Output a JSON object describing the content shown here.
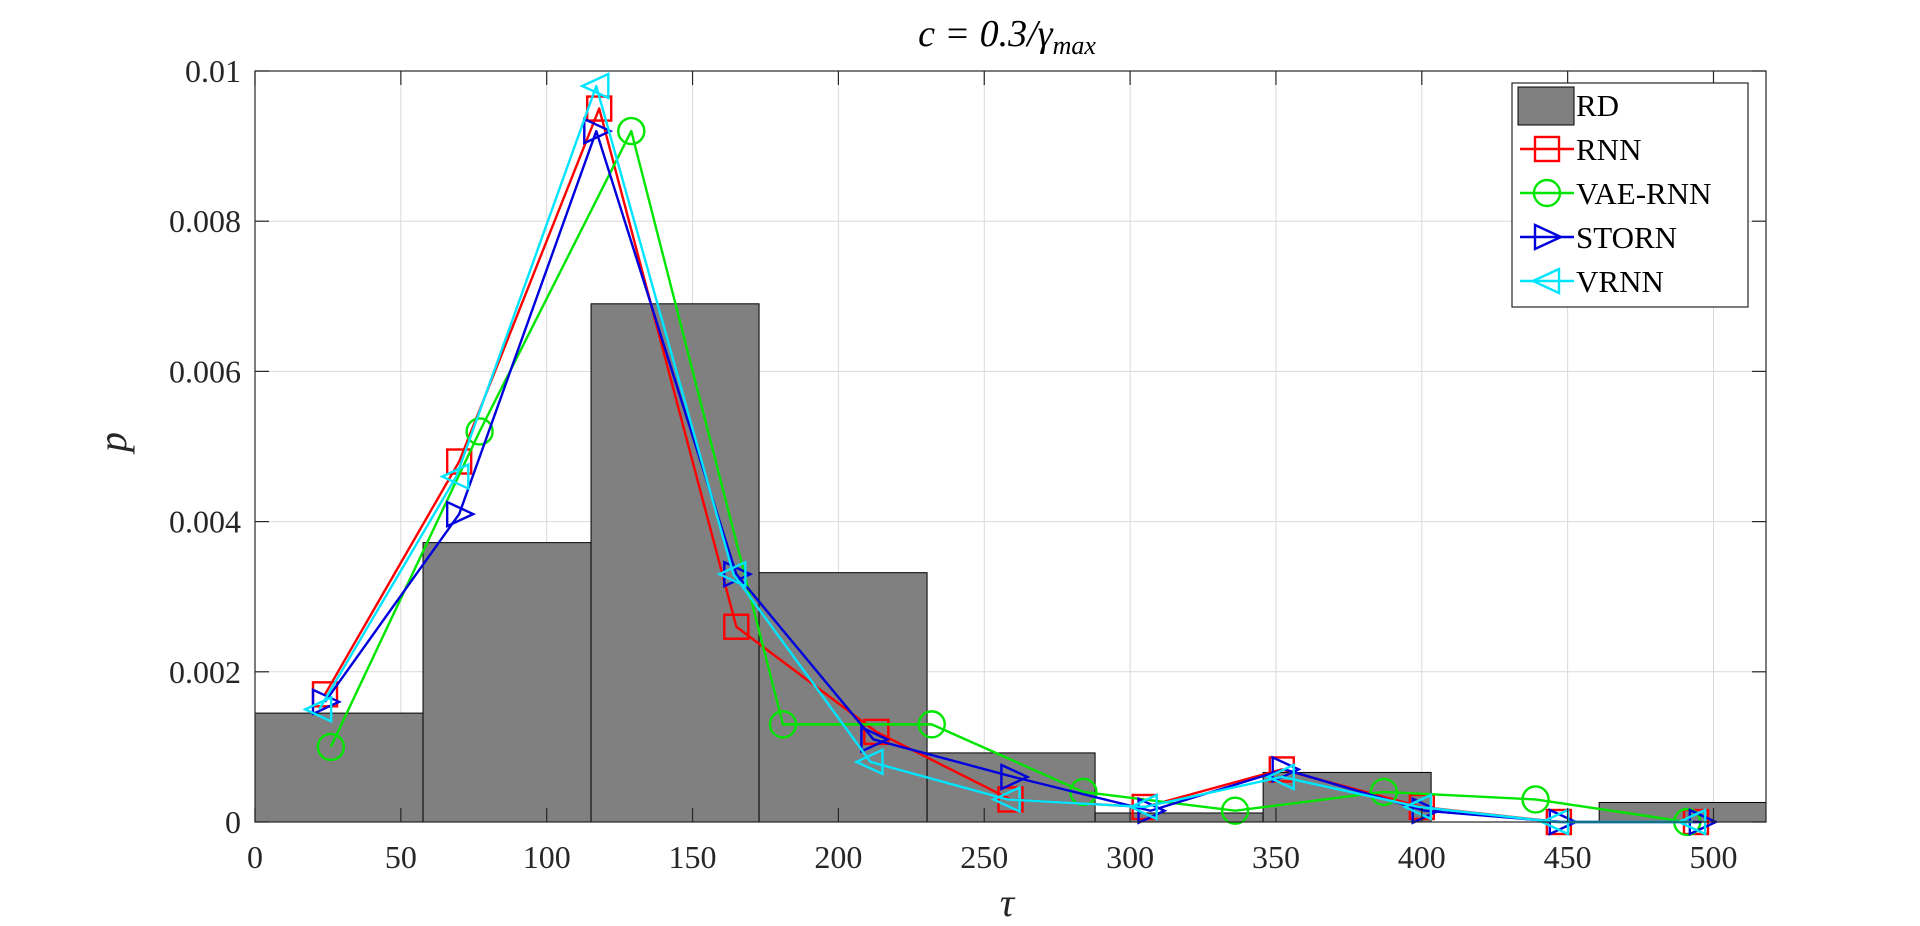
{
  "chart_data": {
    "type": "bar",
    "title": "c = 0.3/γ",
    "title_subscript": "max",
    "xlabel": "τ",
    "ylabel": "p",
    "xlim": [
      0,
      518
    ],
    "ylim": [
      0,
      0.01
    ],
    "xticks": [
      "0",
      "50",
      "100",
      "150",
      "200",
      "250",
      "300",
      "350",
      "400",
      "450",
      "500"
    ],
    "xtick_values": [
      0,
      50,
      100,
      150,
      200,
      250,
      300,
      350,
      400,
      450,
      500
    ],
    "yticks": [
      "0",
      "0.002",
      "0.004",
      "0.006",
      "0.008",
      "0.01"
    ],
    "ytick_values": [
      0,
      0.002,
      0.004,
      0.006,
      0.008,
      0.01
    ],
    "grid": true,
    "legend_position": "top-right",
    "histogram": {
      "name": "RD",
      "color": "#808080",
      "bin_edges": [
        0,
        57.6,
        115.2,
        172.8,
        230.4,
        288,
        345.6,
        403.2,
        460.8,
        518.4
      ],
      "values": [
        0.00145,
        0.00372,
        0.0069,
        0.00332,
        0.00092,
        0.00012,
        0.00066,
        0.0,
        0.00026
      ]
    },
    "series": [
      {
        "name": "RNN",
        "color": "#ff0000",
        "marker": "square",
        "x": [
          24,
          70,
          118,
          165,
          213,
          259,
          305,
          352,
          400,
          447,
          494
        ],
        "y": [
          0.0017,
          0.0048,
          0.0095,
          0.0026,
          0.0012,
          0.0003,
          0.0002,
          0.0007,
          0.0002,
          0.0,
          0.0
        ]
      },
      {
        "name": "VAE-RNN",
        "color": "#00e600",
        "marker": "circle",
        "x": [
          26,
          77,
          129,
          181,
          232,
          284,
          336,
          387,
          439,
          491
        ],
        "y": [
          0.001,
          0.0052,
          0.0092,
          0.0013,
          0.0013,
          0.0004,
          0.00015,
          0.0004,
          0.0003,
          0.0
        ]
      },
      {
        "name": "STORN",
        "color": "#0000dd",
        "marker": "triangle-right",
        "x": [
          24,
          70,
          117,
          165,
          212,
          260,
          307,
          353,
          401,
          448,
          496
        ],
        "y": [
          0.0016,
          0.0041,
          0.0092,
          0.0033,
          0.0011,
          0.0006,
          0.00015,
          0.0007,
          0.00015,
          0.0,
          0.0
        ]
      },
      {
        "name": "VRNN",
        "color": "#00e5ff",
        "marker": "triangle-left",
        "x": [
          22,
          69,
          117,
          164,
          211,
          258,
          305,
          352,
          399,
          446,
          493
        ],
        "y": [
          0.0015,
          0.0046,
          0.0098,
          0.0033,
          0.0008,
          0.0003,
          0.0002,
          0.0006,
          0.0002,
          0.0,
          0.0
        ]
      }
    ]
  }
}
